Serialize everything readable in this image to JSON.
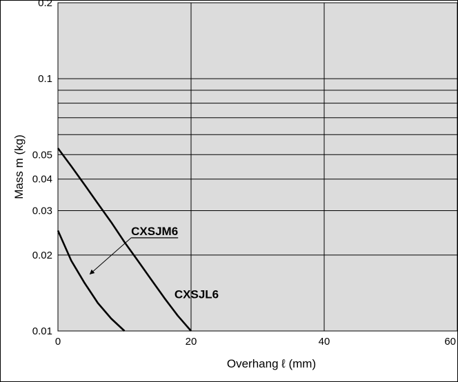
{
  "chart_data": {
    "type": "line",
    "title": "",
    "xlabel": "Overhang ℓ (mm)",
    "ylabel": "Mass m (kg)",
    "xlim": [
      0,
      60
    ],
    "ylim": [
      0.01,
      0.2
    ],
    "yscale": "log",
    "grid": true,
    "x_ticks": [
      0,
      20,
      40,
      60
    ],
    "x_tick_labels": [
      "0",
      "20",
      "40",
      "60"
    ],
    "y_ticks": [
      0.01,
      0.02,
      0.03,
      0.04,
      0.05,
      0.1,
      0.2
    ],
    "y_tick_labels": [
      "0.01",
      "0.02",
      "0.03",
      "0.04",
      "0.05",
      "0.1",
      "0.2"
    ],
    "y_gridlines": [
      0.01,
      0.02,
      0.03,
      0.04,
      0.05,
      0.06,
      0.07,
      0.08,
      0.09,
      0.1,
      0.2
    ],
    "plot_background": "#dcdcdc",
    "line_color": "#000000",
    "series": [
      {
        "name": "CXSJM6",
        "x": [
          0,
          2,
          4,
          6,
          8,
          10
        ],
        "y": [
          0.025,
          0.019,
          0.0155,
          0.0129,
          0.0112,
          0.01
        ]
      },
      {
        "name": "CXSJL6",
        "x": [
          0,
          2,
          4,
          6,
          8,
          10,
          12,
          14,
          16,
          18,
          20
        ],
        "y": [
          0.053,
          0.045,
          0.038,
          0.032,
          0.027,
          0.0225,
          0.019,
          0.016,
          0.0135,
          0.0115,
          0.01
        ]
      }
    ],
    "annotations": [
      {
        "text": "CXSJM6",
        "series": "CXSJM6",
        "at_x": 11,
        "at_y": 0.024,
        "arrow_to": [
          4.8,
          0.0168
        ],
        "underline": true
      },
      {
        "text": "CXSJL6",
        "series": "CXSJL6",
        "at_x": 17.5,
        "at_y": 0.0135,
        "arrow_to": null,
        "underline": false
      }
    ]
  }
}
